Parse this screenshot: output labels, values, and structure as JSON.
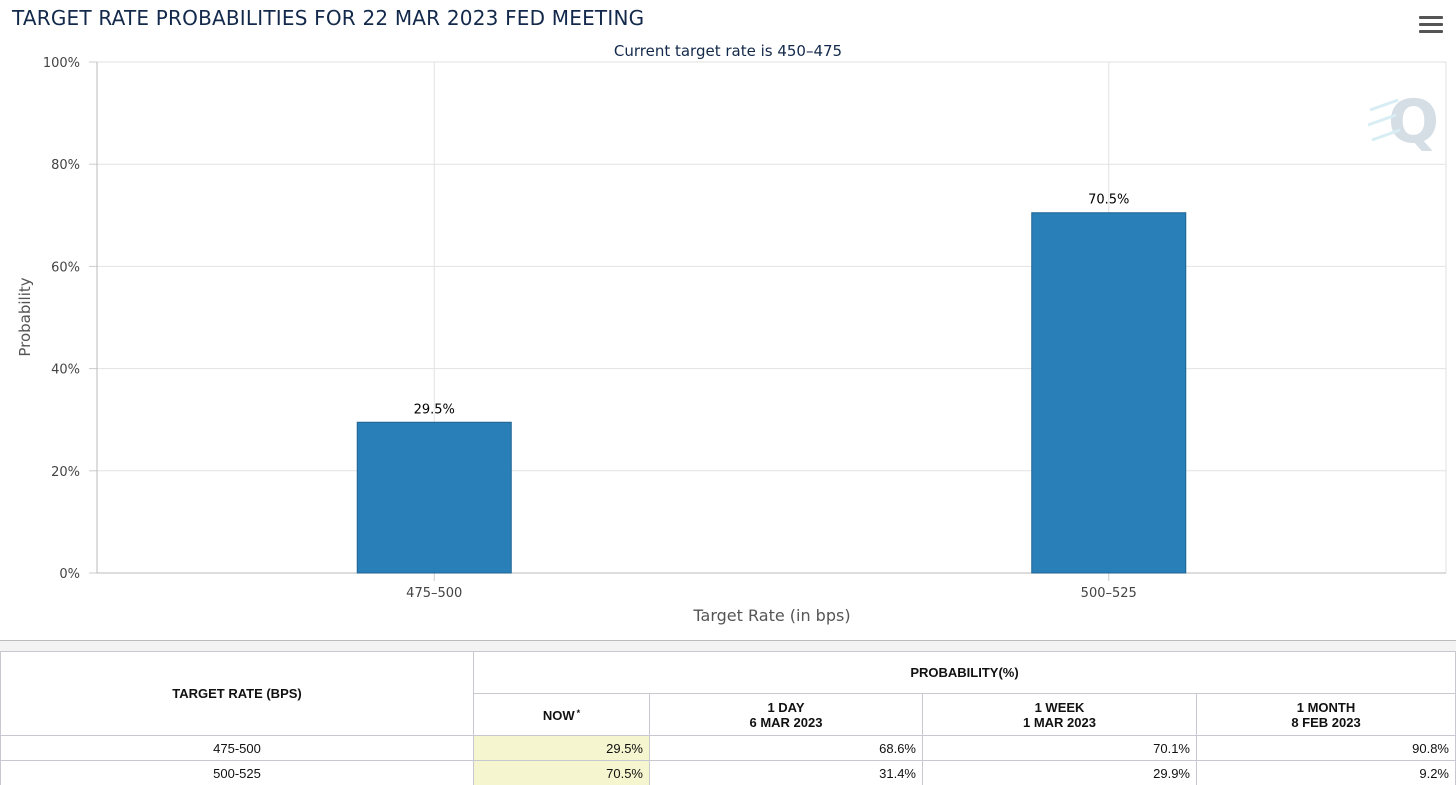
{
  "header": {
    "title": "TARGET RATE PROBABILITIES FOR 22 MAR 2023 FED MEETING",
    "menu_icon": "hamburger-menu-icon"
  },
  "chart_data": {
    "type": "bar",
    "subtitle": "Current target rate is 450–475",
    "categories": [
      "475–500",
      "500–525"
    ],
    "values": [
      29.5,
      70.5
    ],
    "data_labels": [
      "29.5%",
      "70.5%"
    ],
    "xlabel": "Target Rate (in bps)",
    "ylabel": "Probability",
    "ylim": [
      0,
      100
    ],
    "yticks": [
      "0%",
      "20%",
      "40%",
      "60%",
      "80%",
      "100%"
    ],
    "grid": true,
    "bar_color": "#2980b9",
    "watermark_icon": "q-logo-icon"
  },
  "table": {
    "target_header": "TARGET RATE (BPS)",
    "prob_header": "PROBABILITY(%)",
    "columns": [
      {
        "line1": "NOW",
        "line2": "",
        "star": "*"
      },
      {
        "line1": "1 DAY",
        "line2": "6 MAR 2023",
        "star": ""
      },
      {
        "line1": "1 WEEK",
        "line2": "1 MAR 2023",
        "star": ""
      },
      {
        "line1": "1 MONTH",
        "line2": "8 FEB 2023",
        "star": ""
      }
    ],
    "rows": [
      {
        "rate": "475-500",
        "values": [
          "29.5%",
          "68.6%",
          "70.1%",
          "90.8%"
        ]
      },
      {
        "rate": "500-525",
        "values": [
          "70.5%",
          "31.4%",
          "29.9%",
          "9.2%"
        ]
      }
    ],
    "highlight_color": "#f5f5cf"
  }
}
